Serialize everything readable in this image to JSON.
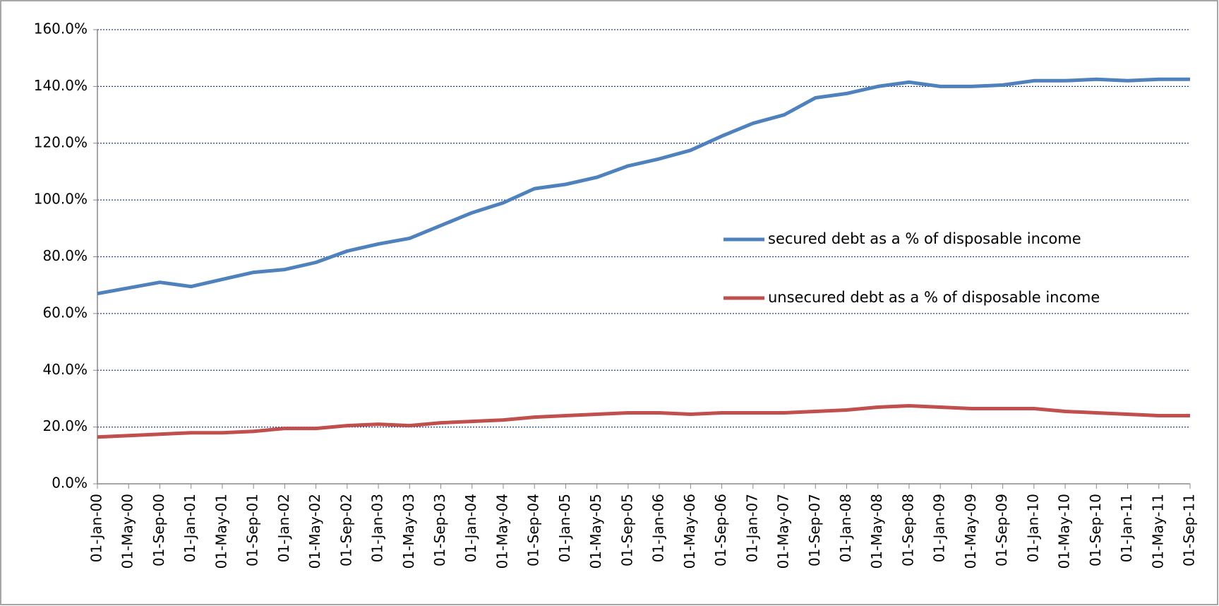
{
  "chart_data": {
    "type": "line",
    "categories": [
      "01-Jan-00",
      "01-May-00",
      "01-Sep-00",
      "01-Jan-01",
      "01-May-01",
      "01-Sep-01",
      "01-Jan-02",
      "01-May-02",
      "01-Sep-02",
      "01-Jan-03",
      "01-May-03",
      "01-Sep-03",
      "01-Jan-04",
      "01-May-04",
      "01-Sep-04",
      "01-Jan-05",
      "01-May-05",
      "01-Sep-05",
      "01-Jan-06",
      "01-May-06",
      "01-Sep-06",
      "01-Jan-07",
      "01-May-07",
      "01-Sep-07",
      "01-Jan-08",
      "01-May-08",
      "01-Sep-08",
      "01-Jan-09",
      "01-May-09",
      "01-Sep-09",
      "01-Jan-10",
      "01-May-10",
      "01-Sep-10",
      "01-Jan-11",
      "01-May-11",
      "01-Sep-11"
    ],
    "series": [
      {
        "name": "secured debt as a % of disposable income",
        "color": "#4f81bd",
        "values": [
          67,
          69,
          71,
          69.5,
          72,
          74.5,
          75.5,
          78,
          82,
          84.5,
          86.5,
          91,
          95.5,
          99,
          104,
          105.5,
          108,
          112,
          114.5,
          117.5,
          122.5,
          127,
          130,
          136,
          137.5,
          140,
          141.5,
          140,
          140,
          140.5,
          142,
          142,
          142.5,
          142,
          142.5,
          142.5
        ]
      },
      {
        "name": "unsecured debt as a % of disposable income",
        "color": "#c0504d",
        "values": [
          16.5,
          17,
          17.5,
          18,
          18,
          18.5,
          19.5,
          19.5,
          20.5,
          21,
          20.5,
          21.5,
          22,
          22.5,
          23.5,
          24,
          24.5,
          25,
          25,
          24.5,
          25,
          25,
          25,
          25.5,
          26,
          27,
          27.5,
          27,
          26.5,
          26.5,
          26.5,
          25.5,
          25,
          24.5,
          24,
          24
        ]
      }
    ],
    "ylim": [
      0,
      160
    ],
    "yticks": [
      {
        "value": 0,
        "label": "0.0%"
      },
      {
        "value": 20,
        "label": "20.0%"
      },
      {
        "value": 40,
        "label": "40.0%"
      },
      {
        "value": 60,
        "label": "60.0%"
      },
      {
        "value": 80,
        "label": "80.0%"
      },
      {
        "value": 100,
        "label": "100.0%"
      },
      {
        "value": 120,
        "label": "120.0%"
      },
      {
        "value": 140,
        "label": "140.0%"
      },
      {
        "value": 160,
        "label": "160.0%"
      }
    ],
    "grid": true,
    "legend_position": "center-right"
  }
}
